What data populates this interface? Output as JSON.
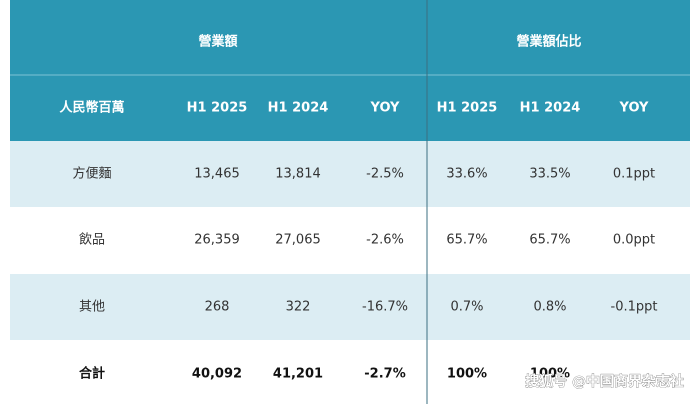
{
  "header": {
    "groups": [
      "營業額",
      "營業額佔比"
    ],
    "columns": [
      "人民幣百萬",
      "H1 2025",
      "H1 2024",
      "YOY",
      "H1 2025",
      "H1 2024",
      "YOY"
    ]
  },
  "table": {
    "rows": [
      [
        "方便麵",
        "13,465",
        "13,814",
        "-2.5%",
        "33.6%",
        "33.5%",
        "0.1ppt"
      ],
      [
        "飲品",
        "26,359",
        "27,065",
        "-2.6%",
        "65.7%",
        "65.7%",
        "0.0ppt"
      ],
      [
        "其他",
        "268",
        "322",
        "-16.7%",
        "0.7%",
        "0.8%",
        "-0.1ppt"
      ],
      [
        "合計",
        "40,092",
        "41,201",
        "-2.7%",
        "100%",
        "100%",
        ""
      ]
    ]
  },
  "watermark": "搜狐号 @中国商界杂志社"
}
